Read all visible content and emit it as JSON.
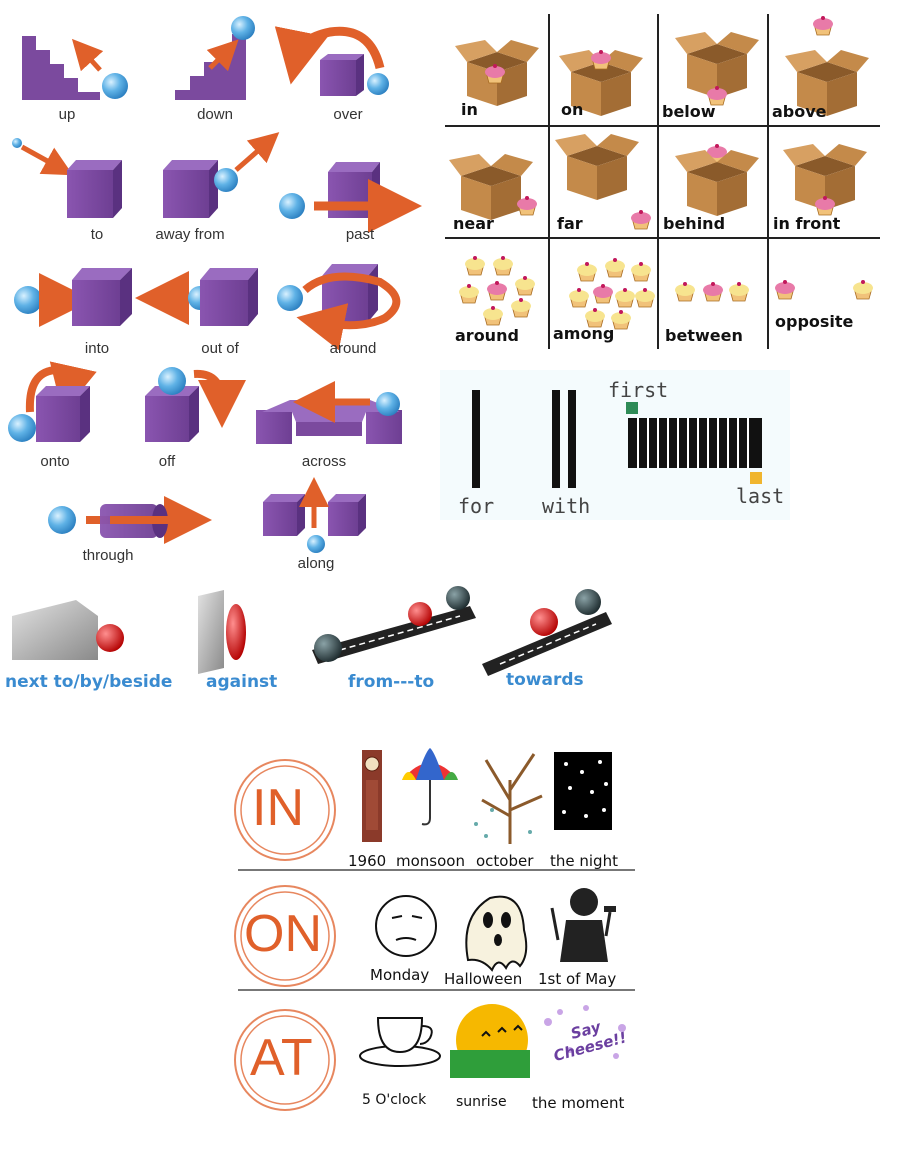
{
  "movement": [
    {
      "id": "up",
      "label": "up"
    },
    {
      "id": "down",
      "label": "down"
    },
    {
      "id": "over",
      "label": "over"
    },
    {
      "id": "to",
      "label": "to"
    },
    {
      "id": "away-from",
      "label": "away from"
    },
    {
      "id": "past",
      "label": "past"
    },
    {
      "id": "into",
      "label": "into"
    },
    {
      "id": "out-of",
      "label": "out of"
    },
    {
      "id": "around",
      "label": "around"
    },
    {
      "id": "onto",
      "label": "onto"
    },
    {
      "id": "off",
      "label": "off"
    },
    {
      "id": "across",
      "label": "across"
    },
    {
      "id": "through",
      "label": "through"
    },
    {
      "id": "along",
      "label": "along"
    }
  ],
  "place": [
    {
      "id": "in",
      "label": "in"
    },
    {
      "id": "on",
      "label": "on"
    },
    {
      "id": "below",
      "label": "below"
    },
    {
      "id": "above",
      "label": "above"
    },
    {
      "id": "near",
      "label": "near"
    },
    {
      "id": "far",
      "label": "far"
    },
    {
      "id": "behind",
      "label": "behind"
    },
    {
      "id": "in-front",
      "label": "in front"
    },
    {
      "id": "around",
      "label": "around"
    },
    {
      "id": "among",
      "label": "among"
    },
    {
      "id": "between",
      "label": "between"
    },
    {
      "id": "opposite",
      "label": "opposite"
    }
  ],
  "order": {
    "for": "for",
    "with": "with",
    "first": "first",
    "last": "last"
  },
  "relation": [
    {
      "id": "next-to",
      "label": "next to/by/beside"
    },
    {
      "id": "against",
      "label": "against"
    },
    {
      "id": "from-to",
      "label": "from---to"
    },
    {
      "id": "towards",
      "label": "towards"
    }
  ],
  "time": {
    "in": {
      "word": "IN",
      "items": [
        "1960",
        "monsoon",
        "october",
        "the night"
      ]
    },
    "on": {
      "word": "ON",
      "items": [
        "Monday",
        "Halloween",
        "1st of May"
      ]
    },
    "at": {
      "word": "AT",
      "items": [
        "5 O'clock",
        "sunrise",
        "the moment"
      ],
      "bubble": "Say Cheese!!"
    }
  },
  "colors": {
    "cube": "#7b4a9e",
    "ball": "#5fb2e6",
    "arrow": "#e0602a",
    "circle": "#e0602a",
    "box": "#b07a3e",
    "cupcake": "#e87aa8"
  }
}
